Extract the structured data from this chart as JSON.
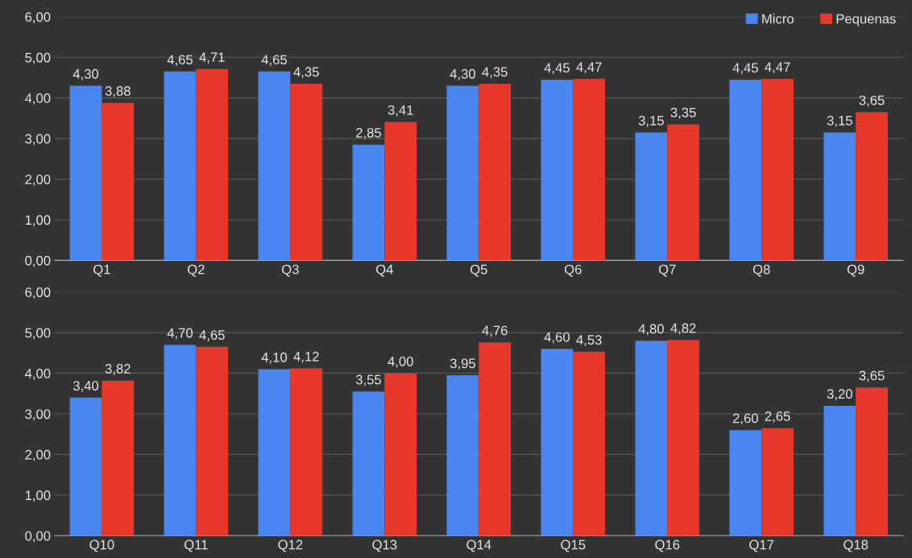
{
  "chart_data": [
    {
      "type": "bar",
      "categories": [
        "Q1",
        "Q2",
        "Q3",
        "Q4",
        "Q5",
        "Q6",
        "Q7",
        "Q8",
        "Q9"
      ],
      "ylim": [
        0,
        6
      ],
      "yticks": [
        {
          "value": 0,
          "label": "0,00"
        },
        {
          "value": 1,
          "label": "1,00"
        },
        {
          "value": 2,
          "label": "2,00"
        },
        {
          "value": 3,
          "label": "3,00"
        },
        {
          "value": 4,
          "label": "4,00"
        },
        {
          "value": 5,
          "label": "5,00"
        },
        {
          "value": 6,
          "label": "6,00"
        }
      ],
      "grid": "y",
      "legend": "top right",
      "series": [
        {
          "name": "Micro",
          "color": "#4a86f0",
          "values": [
            4.3,
            4.65,
            4.65,
            2.85,
            4.3,
            4.45,
            3.15,
            4.45,
            3.15
          ],
          "value_labels": [
            "4,30",
            "4,65",
            "4,65",
            "2,85",
            "4,30",
            "4,45",
            "3,15",
            "4,45",
            "3,15"
          ]
        },
        {
          "name": "Pequenas",
          "color": "#e8382c",
          "values": [
            3.88,
            4.71,
            4.35,
            3.41,
            4.35,
            4.47,
            3.35,
            4.47,
            3.65
          ],
          "value_labels": [
            "3,88",
            "4,71",
            "4,35",
            "3,41",
            "4,35",
            "4,47",
            "3,35",
            "4,47",
            "3,65"
          ]
        }
      ]
    },
    {
      "type": "bar",
      "categories": [
        "Q10",
        "Q11",
        "Q12",
        "Q13",
        "Q14",
        "Q15",
        "Q16",
        "Q17",
        "Q18"
      ],
      "ylim": [
        0,
        6
      ],
      "yticks": [
        {
          "value": 0,
          "label": "0,00"
        },
        {
          "value": 1,
          "label": "1,00"
        },
        {
          "value": 2,
          "label": "2,00"
        },
        {
          "value": 3,
          "label": "3,00"
        },
        {
          "value": 4,
          "label": "4,00"
        },
        {
          "value": 5,
          "label": "5,00"
        },
        {
          "value": 6,
          "label": "6,00"
        }
      ],
      "grid": "y",
      "series": [
        {
          "color": "#4a86f0",
          "values": [
            3.4,
            4.7,
            4.1,
            3.55,
            3.95,
            4.6,
            4.8,
            2.6,
            3.2
          ],
          "value_labels": [
            "3,40",
            "4,70",
            "4,10",
            "3,55",
            "3,95",
            "4,60",
            "4,80",
            "2,60",
            "3,20"
          ]
        },
        {
          "color": "#e8382c",
          "values": [
            3.82,
            4.65,
            4.12,
            4.0,
            4.76,
            4.53,
            4.82,
            2.65,
            3.65
          ],
          "value_labels": [
            "3,82",
            "4,65",
            "4,12",
            "4,00",
            "4,76",
            "4,53",
            "4,82",
            "2,65",
            "3,65"
          ]
        }
      ]
    }
  ]
}
